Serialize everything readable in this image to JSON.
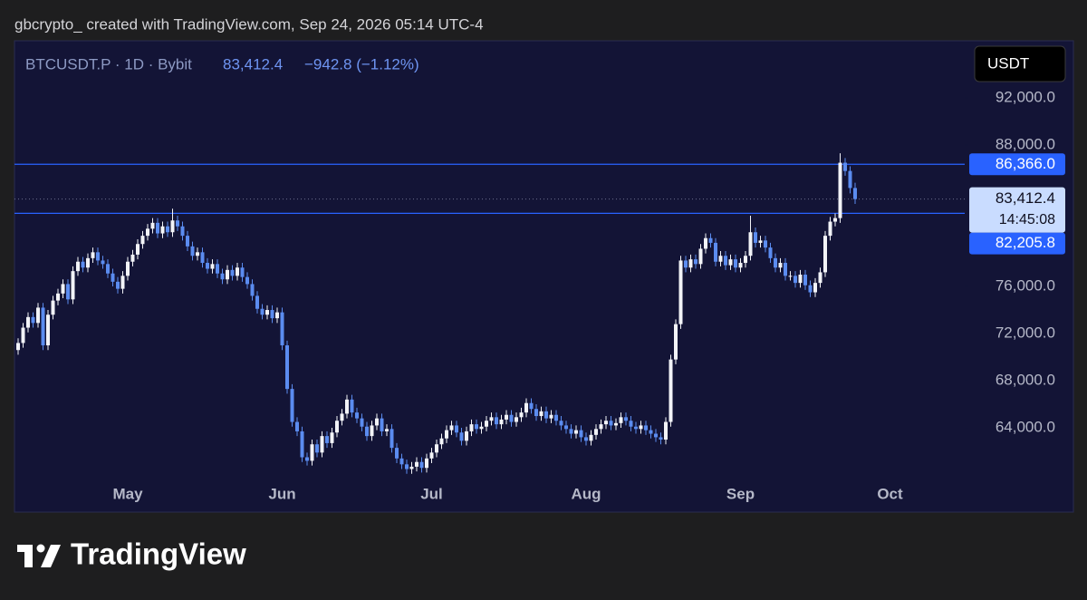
{
  "header": {
    "text": "gbcrypto_ created with TradingView.com, Sep 24, 2026 05:14 UTC-4"
  },
  "footer": {
    "brand": "TradingView"
  },
  "chart_data": {
    "type": "candlestick",
    "symbol": "BTCUSDT.P · 1D · Bybit",
    "change": "−942.8 (−1.12%)",
    "currency": "USDT",
    "up_color": "#f2f3f7",
    "down_color": "#5b8cf0",
    "level_color": "#2962ff",
    "ylim": [
      59540,
      96850
    ],
    "yticks": [
      {
        "value": 92000,
        "label": "92,000.0"
      },
      {
        "value": 88000,
        "label": "88,000.0"
      },
      {
        "value": 76000,
        "label": "76,000.0"
      },
      {
        "value": 72000,
        "label": "72,000.0"
      },
      {
        "value": 68000,
        "label": "68,000.0"
      },
      {
        "value": 64000,
        "label": "64,000.0"
      }
    ],
    "levels": [
      {
        "value": 86366.0,
        "label": "86,366.0"
      },
      {
        "value": 82205.8,
        "label": "82,205.8"
      }
    ],
    "price_line": {
      "value": 83412.4,
      "label": "83,412.4",
      "countdown": "14:45:08"
    },
    "categories": [
      null,
      null,
      null,
      null,
      null,
      null,
      null,
      null,
      null,
      null,
      null,
      null,
      null,
      null,
      null,
      null,
      null,
      null,
      null,
      null,
      null,
      null,
      "May",
      null,
      null,
      null,
      null,
      null,
      null,
      null,
      null,
      null,
      null,
      null,
      null,
      null,
      null,
      null,
      null,
      null,
      null,
      null,
      null,
      null,
      null,
      null,
      null,
      null,
      null,
      null,
      null,
      null,
      null,
      "Jun",
      null,
      null,
      null,
      null,
      null,
      null,
      null,
      null,
      null,
      null,
      null,
      null,
      null,
      null,
      null,
      null,
      null,
      null,
      null,
      null,
      null,
      null,
      null,
      null,
      null,
      null,
      null,
      null,
      null,
      "Jul",
      null,
      null,
      null,
      null,
      null,
      null,
      null,
      null,
      null,
      null,
      null,
      null,
      null,
      null,
      null,
      null,
      null,
      null,
      null,
      null,
      null,
      null,
      null,
      null,
      null,
      null,
      null,
      null,
      null,
      null,
      "Aug",
      null,
      null,
      null,
      null,
      null,
      null,
      null,
      null,
      null,
      null,
      null,
      null,
      null,
      null,
      null,
      null,
      null,
      null,
      null,
      null,
      null,
      null,
      null,
      null,
      null,
      null,
      null,
      null,
      null,
      null,
      "Sep",
      null,
      null,
      null,
      null,
      null,
      null,
      null,
      null,
      null,
      null,
      null,
      null,
      null,
      null,
      null,
      null,
      null,
      null,
      null,
      null,
      null,
      null,
      null,
      null,
      null,
      null,
      null,
      null,
      null,
      "Oct"
    ],
    "open": [
      70600,
      71200,
      72500,
      73400,
      72900,
      74200,
      71000,
      73600,
      74800,
      75400,
      76200,
      74900,
      77300,
      78100,
      77600,
      78400,
      78900,
      78200,
      77900,
      77100,
      76400,
      75800,
      76900,
      78100,
      78700,
      79600,
      80300,
      80900,
      81400,
      80500,
      81100,
      80600,
      81600,
      81100,
      80300,
      79400,
      78600,
      78900,
      78000,
      77500,
      77900,
      77100,
      76600,
      77400,
      76900,
      77600,
      76800,
      76200,
      75200,
      74100,
      73600,
      74000,
      73300,
      73800,
      71000,
      67300,
      64500,
      63700,
      61500,
      61200,
      62600,
      61900,
      63300,
      62700,
      63600,
      64600,
      65200,
      66400,
      65300,
      64800,
      64100,
      63300,
      64200,
      64800,
      63700,
      63900,
      62300,
      61400,
      60900,
      60500,
      60700,
      61100,
      60600,
      61400,
      61900,
      62600,
      63100,
      63800,
      64200,
      63600,
      62900,
      63700,
      64300,
      63900,
      64100,
      64600,
      64900,
      64300,
      64700,
      65100,
      64500,
      64900,
      65300,
      66100,
      65600,
      65000,
      65400,
      64800,
      65100,
      64600,
      64200,
      63900,
      63500,
      63800,
      63200,
      62900,
      63400,
      63900,
      64300,
      64600,
      64200,
      64400,
      64900,
      64600,
      64100,
      63900,
      64200,
      63800,
      63500,
      63200,
      63000,
      64500,
      69800,
      72800,
      78200,
      77600,
      78300,
      77900,
      79200,
      80100,
      79700,
      78100,
      78600,
      77800,
      78300,
      77600,
      78000,
      78600,
      80600,
      79700,
      79900,
      79300,
      78400,
      77600,
      78000,
      76900,
      76900,
      76300,
      77000,
      76100,
      75500,
      76300,
      77200,
      80300,
      81500,
      81800,
      86500,
      85800,
      84355.2,
      null,
      null,
      null,
      null,
      null,
      null,
      null
    ],
    "high": [
      71600,
      72900,
      73800,
      73800,
      74600,
      74600,
      74000,
      75200,
      75800,
      76600,
      76600,
      77700,
      78500,
      78500,
      78800,
      79300,
      79300,
      78600,
      78300,
      77500,
      76800,
      77300,
      78500,
      79100,
      80000,
      80700,
      81300,
      81800,
      81800,
      81500,
      81500,
      82600,
      82000,
      81500,
      80700,
      79800,
      79300,
      79300,
      78400,
      78300,
      78300,
      77500,
      77800,
      77800,
      78000,
      78000,
      77200,
      76600,
      75600,
      74500,
      74400,
      74400,
      74200,
      74200,
      71400,
      67700,
      64900,
      64100,
      61900,
      63000,
      63000,
      63700,
      63700,
      64000,
      65000,
      65600,
      66800,
      66800,
      65700,
      65200,
      64500,
      64600,
      65200,
      65200,
      64300,
      64300,
      62700,
      61800,
      61300,
      61100,
      61500,
      61500,
      61800,
      62300,
      63000,
      63500,
      64200,
      64600,
      64600,
      64000,
      64100,
      64700,
      64700,
      64500,
      65000,
      65300,
      65300,
      65100,
      65500,
      65500,
      65300,
      65700,
      66500,
      66500,
      66000,
      65800,
      65800,
      65500,
      65500,
      65000,
      64600,
      64300,
      64200,
      64200,
      63600,
      63800,
      64300,
      64700,
      65000,
      65000,
      64800,
      65300,
      65300,
      65000,
      64500,
      64600,
      64600,
      64200,
      63900,
      63600,
      64900,
      70200,
      73200,
      78600,
      78600,
      78700,
      78700,
      79600,
      80500,
      80500,
      80100,
      79000,
      79000,
      78700,
      78700,
      78400,
      79000,
      82000,
      81000,
      80300,
      80300,
      79700,
      78800,
      78400,
      78400,
      77300,
      77300,
      77400,
      77400,
      76500,
      76700,
      77600,
      80700,
      81900,
      82200,
      87300,
      86900,
      86200,
      84800,
      null,
      null,
      null,
      null,
      null,
      null,
      null
    ],
    "low": [
      70200,
      70800,
      72100,
      72500,
      72500,
      70600,
      70600,
      73200,
      74400,
      75000,
      74500,
      74500,
      76900,
      77200,
      77200,
      78000,
      77800,
      77500,
      76700,
      76000,
      75400,
      75400,
      76500,
      77700,
      78300,
      79200,
      79900,
      80500,
      80100,
      80100,
      80200,
      80200,
      80700,
      79900,
      79000,
      78200,
      78200,
      77600,
      77100,
      77100,
      76700,
      76200,
      76200,
      76500,
      76500,
      76400,
      75800,
      74800,
      73700,
      73200,
      73200,
      72900,
      72900,
      70600,
      66900,
      64100,
      63300,
      61100,
      60800,
      60800,
      61500,
      61500,
      62300,
      62300,
      63200,
      64200,
      64800,
      64900,
      64400,
      63700,
      62900,
      62900,
      63800,
      63300,
      63300,
      61900,
      61000,
      60500,
      60100,
      60100,
      60300,
      60200,
      60200,
      61000,
      61500,
      62200,
      62700,
      63400,
      63200,
      62500,
      62500,
      63300,
      63500,
      63500,
      63700,
      64200,
      63900,
      63900,
      64300,
      64100,
      64100,
      64500,
      64900,
      65200,
      64600,
      64600,
      64400,
      64400,
      64200,
      63800,
      63500,
      63100,
      63100,
      62800,
      62500,
      62500,
      63000,
      63500,
      63900,
      63800,
      63800,
      64000,
      64200,
      63700,
      63500,
      63500,
      63400,
      63100,
      62800,
      62600,
      62600,
      64100,
      69400,
      72400,
      77200,
      77200,
      77500,
      77500,
      78800,
      79300,
      77700,
      77700,
      77400,
      77400,
      77200,
      77200,
      77600,
      78200,
      79300,
      79300,
      78900,
      78000,
      77200,
      77200,
      76500,
      76500,
      75900,
      75900,
      75700,
      75100,
      75100,
      75900,
      76800,
      79900,
      81100,
      81400,
      85400,
      83900,
      83000,
      null,
      null,
      null,
      null,
      null,
      null,
      null
    ],
    "close": [
      71200,
      72500,
      73400,
      72900,
      74200,
      71000,
      73600,
      74800,
      75400,
      76200,
      74900,
      77300,
      78100,
      77600,
      78400,
      78900,
      78200,
      77900,
      77100,
      76400,
      75800,
      76900,
      78100,
      78700,
      79600,
      80300,
      80900,
      81400,
      80500,
      81100,
      80600,
      81600,
      81100,
      80300,
      79400,
      78600,
      78900,
      78000,
      77500,
      77900,
      77100,
      76600,
      77400,
      76900,
      77600,
      76800,
      76200,
      75200,
      74100,
      73600,
      74000,
      73300,
      73800,
      71000,
      67300,
      64500,
      63700,
      61500,
      61200,
      62600,
      61900,
      63300,
      62700,
      63600,
      64600,
      65200,
      66400,
      65300,
      64800,
      64100,
      63300,
      64200,
      64800,
      63700,
      63900,
      62300,
      61400,
      60900,
      60500,
      60700,
      61100,
      60600,
      61400,
      61900,
      62600,
      63100,
      63800,
      64200,
      63600,
      62900,
      63700,
      64300,
      63900,
      64100,
      64600,
      64900,
      64300,
      64700,
      65100,
      64500,
      64900,
      65300,
      66100,
      65600,
      65000,
      65400,
      64800,
      65100,
      64600,
      64200,
      63900,
      63500,
      63800,
      63200,
      62900,
      63400,
      63900,
      64300,
      64600,
      64200,
      64400,
      64900,
      64600,
      64100,
      63900,
      64200,
      63800,
      63500,
      63200,
      63000,
      64500,
      69800,
      72800,
      78200,
      77600,
      78300,
      77900,
      79200,
      80100,
      79700,
      78100,
      78600,
      77800,
      78300,
      77600,
      78000,
      78600,
      80600,
      79700,
      79900,
      79300,
      78400,
      77600,
      78000,
      76900,
      76900,
      76300,
      77000,
      76100,
      75500,
      76300,
      77200,
      80300,
      81500,
      81800,
      86500,
      85800,
      84355.2,
      83412.4,
      null,
      null,
      null,
      null,
      null,
      null,
      null
    ]
  }
}
